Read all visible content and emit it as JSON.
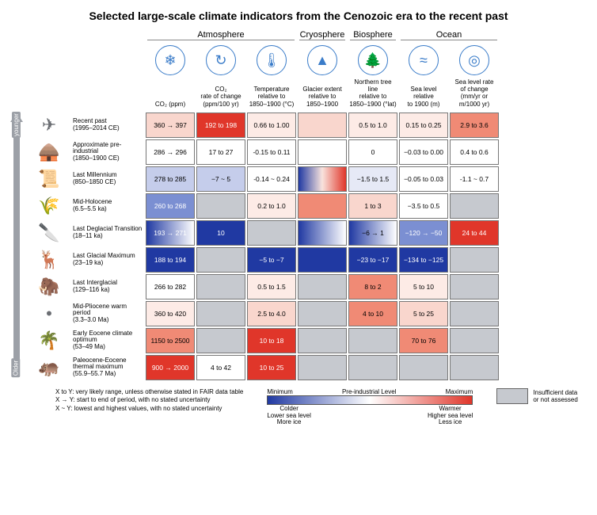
{
  "title": "Selected large-scale climate indicators from the Cenozoic era to the recent past",
  "groups": [
    {
      "name": "Atmosphere",
      "span": 3
    },
    {
      "name": "Cryosphere",
      "span": 1
    },
    {
      "name": "Biosphere",
      "span": 1
    },
    {
      "name": "Ocean",
      "span": 2
    }
  ],
  "columns": [
    {
      "label": "CO₂ (ppm)",
      "icon": "co2-icon",
      "glyph": "❄"
    },
    {
      "label": "CO₂\nrate of change\n(ppm/100 yr)",
      "icon": "co2-rate-icon",
      "glyph": "↻"
    },
    {
      "label": "Temperature\nrelative to\n1850–1900 (°C)",
      "icon": "thermometer-icon",
      "glyph": "🌡"
    },
    {
      "label": "Glacier extent\nrelative to\n1850–1900",
      "icon": "glacier-icon",
      "glyph": "▲"
    },
    {
      "label": "Northern tree line\nrelative to\n1850–1900 (°lat)",
      "icon": "treeline-icon",
      "glyph": "🌲"
    },
    {
      "label": "Sea level relative\nto 1900 (m)",
      "icon": "sea-level-icon",
      "glyph": "≈"
    },
    {
      "label": "Sea level rate\nof change\n(mm/yr or m/1000 yr)",
      "icon": "sea-rate-icon",
      "glyph": "◎"
    }
  ],
  "colors": {
    "icon_border": "#3a7cc9",
    "icon_fill": "#3a7cc9",
    "no_data": "#c6c9cf",
    "red_strong": "#e0362a",
    "red_mid": "#f08a75",
    "red_light": "#f9d6cd",
    "red_vlight": "#fdebe6",
    "blue_strong": "#2039a2",
    "blue_mid": "#7b8fd2",
    "blue_light": "#c5cdeb",
    "blue_vlight": "#e6e9f6",
    "white": "#ffffff",
    "row_icon": "#6b6e73",
    "text_white": "#ffffff",
    "text_black": "#000000"
  },
  "timeline": {
    "top": "younger",
    "bottom": "Older"
  },
  "rows": [
    {
      "name": "Recent past",
      "period": "(1995–2014 CE)",
      "icon": "✈",
      "cells": [
        {
          "t": "360 → 397",
          "bg": "red_light"
        },
        {
          "t": "192 to 198",
          "bg": "red_strong",
          "fg": "text_white"
        },
        {
          "t": "0.66 to 1.00",
          "bg": "red_vlight"
        },
        {
          "t": "",
          "bg": "red_light"
        },
        {
          "t": "0.5 to 1.0",
          "bg": "red_vlight"
        },
        {
          "t": "0.15 to 0.25",
          "bg": "red_vlight"
        },
        {
          "t": "2.9 to 3.6",
          "bg": "red_mid"
        }
      ]
    },
    {
      "name": "Approximate pre-industrial",
      "period": "(1850–1900 CE)",
      "icon": "🛖",
      "cells": [
        {
          "t": "286 → 296",
          "bg": "white"
        },
        {
          "t": "17 to 27",
          "bg": "white"
        },
        {
          "t": "-0.15 to 0.11",
          "bg": "white"
        },
        {
          "t": "",
          "bg": "white"
        },
        {
          "t": "0",
          "bg": "white"
        },
        {
          "t": "−0.03 to 0.00",
          "bg": "white"
        },
        {
          "t": "0.4 to 0.6",
          "bg": "white"
        }
      ]
    },
    {
      "name": "Last Millennium",
      "period": "(850–1850 CE)",
      "icon": "📜",
      "cells": [
        {
          "t": "278 to 285",
          "bg": "blue_light"
        },
        {
          "t": "−7 ~ 5",
          "bg": "blue_light"
        },
        {
          "t": "-0.14 ~ 0.24",
          "bg": "white"
        },
        {
          "t": "",
          "grad": "grad-br"
        },
        {
          "t": "−1.5 to 1.5",
          "bg": "blue_vlight"
        },
        {
          "t": "−0.05 to 0.03",
          "bg": "white"
        },
        {
          "t": "-1.1 ~ 0.7",
          "bg": "white"
        }
      ]
    },
    {
      "name": "Mid-Holocene",
      "period": "(6.5–5.5 ka)",
      "icon": "🌾",
      "cells": [
        {
          "t": "260 to 268",
          "bg": "blue_mid",
          "fg": "text_white"
        },
        {
          "t": "",
          "bg": "no_data"
        },
        {
          "t": "0.2 to 1.0",
          "bg": "red_vlight"
        },
        {
          "t": "",
          "bg": "red_mid"
        },
        {
          "t": "1 to 3",
          "bg": "red_light"
        },
        {
          "t": "−3.5 to 0.5",
          "bg": "white"
        },
        {
          "t": "",
          "bg": "no_data"
        }
      ]
    },
    {
      "name": "Last Deglacial Transition",
      "period": "(18–11 ka)",
      "icon": "🔪",
      "cells": [
        {
          "t": "193 → 271",
          "grad": "grad-bw",
          "fg": "text_white"
        },
        {
          "t": "10",
          "bg": "blue_strong",
          "fg": "text_white"
        },
        {
          "t": "",
          "bg": "no_data"
        },
        {
          "t": "",
          "grad": "grad-bw"
        },
        {
          "t": "−6 → 1",
          "grad": "grad-bw"
        },
        {
          "t": "−120 → −50",
          "bg": "blue_mid",
          "fg": "text_white"
        },
        {
          "t": "24 to 44",
          "bg": "red_strong",
          "fg": "text_white"
        }
      ]
    },
    {
      "name": "Last Glacial Maximum",
      "period": "(23–19 ka)",
      "icon": "🦌",
      "cells": [
        {
          "t": "188 to 194",
          "bg": "blue_strong",
          "fg": "text_white"
        },
        {
          "t": "",
          "bg": "no_data"
        },
        {
          "t": "−5 to −7",
          "bg": "blue_strong",
          "fg": "text_white"
        },
        {
          "t": "",
          "bg": "blue_strong"
        },
        {
          "t": "−23 to −17",
          "bg": "blue_strong",
          "fg": "text_white"
        },
        {
          "t": "−134 to −125",
          "bg": "blue_strong",
          "fg": "text_white"
        },
        {
          "t": "",
          "bg": "no_data"
        }
      ]
    },
    {
      "name": "Last Interglacial",
      "period": "(129–116 ka)",
      "icon": "🦣",
      "cells": [
        {
          "t": "266 to 282",
          "bg": "white"
        },
        {
          "t": "",
          "bg": "no_data"
        },
        {
          "t": "0.5 to 1.5",
          "bg": "red_vlight"
        },
        {
          "t": "",
          "bg": "no_data"
        },
        {
          "t": "8 to 2",
          "bg": "red_mid"
        },
        {
          "t": "5 to 10",
          "bg": "red_vlight"
        },
        {
          "t": "",
          "bg": "no_data"
        }
      ]
    },
    {
      "name": "Mid-Pliocene warm period",
      "period": "(3.3–3.0 Ma)",
      "icon": "",
      "cells": [
        {
          "t": "360 to 420",
          "bg": "red_vlight"
        },
        {
          "t": "",
          "bg": "no_data"
        },
        {
          "t": "2.5 to 4.0",
          "bg": "red_light"
        },
        {
          "t": "",
          "bg": "no_data"
        },
        {
          "t": "4 to 10",
          "bg": "red_mid"
        },
        {
          "t": "5 to 25",
          "bg": "red_light"
        },
        {
          "t": "",
          "bg": "no_data"
        }
      ]
    },
    {
      "name": "Early Eocene climate optimum",
      "period": "(53–49 Ma)",
      "icon": "🌴",
      "cells": [
        {
          "t": "1150 to 2500",
          "bg": "red_mid"
        },
        {
          "t": "",
          "bg": "no_data"
        },
        {
          "t": "10 to 18",
          "bg": "red_strong",
          "fg": "text_white"
        },
        {
          "t": "",
          "bg": "no_data"
        },
        {
          "t": "",
          "bg": "no_data"
        },
        {
          "t": "70 to 76",
          "bg": "red_mid"
        },
        {
          "t": "",
          "bg": "no_data"
        }
      ]
    },
    {
      "name": "Paleocene-Eocene thermal maximum",
      "period": "(55.9–55.7 Ma)",
      "icon": "🦛",
      "cells": [
        {
          "t": "900 → 2000",
          "bg": "red_strong",
          "fg": "text_white"
        },
        {
          "t": "4 to 42",
          "bg": "white"
        },
        {
          "t": "10 to 25",
          "bg": "red_strong",
          "fg": "text_white"
        },
        {
          "t": "",
          "bg": "no_data"
        },
        {
          "t": "",
          "bg": "no_data"
        },
        {
          "t": "",
          "bg": "no_data"
        },
        {
          "t": "",
          "bg": "no_data"
        }
      ]
    }
  ],
  "legend": {
    "lines": [
      "X to Y: very likely range, unless otherwise stated in FAIR data table",
      "X → Y: start to end of period, with no stated uncertainty",
      "X ~ Y: lowest and highest values, with no stated uncertainty"
    ],
    "scale": {
      "min": "Minimum",
      "mid": "Pre-industrial Level",
      "max": "Maximum",
      "left": [
        "Colder",
        "Lower sea level",
        "More ice"
      ],
      "right": [
        "Warmer",
        "Higher sea level",
        "Less ice"
      ]
    },
    "nodata": "Insufficient data\nor not assessed"
  }
}
